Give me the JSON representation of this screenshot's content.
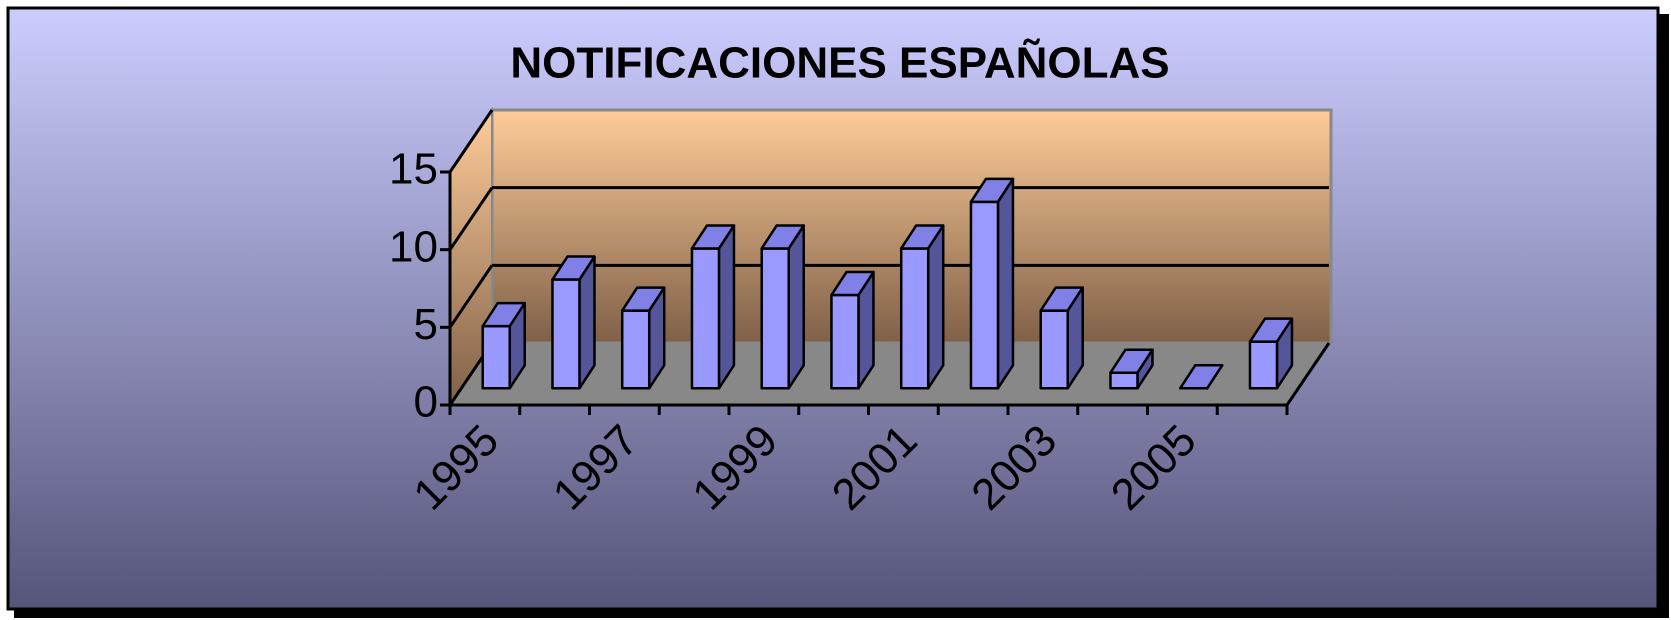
{
  "chart_data": {
    "type": "bar3d",
    "title": "NOTIFICACIONES ESPAÑOLAS",
    "categories": [
      "1995",
      null,
      "1997",
      null,
      "1999",
      null,
      "2001",
      null,
      "2003",
      null,
      "2005",
      null
    ],
    "values": [
      4,
      7,
      5,
      9,
      9,
      6,
      9,
      12,
      5,
      1,
      0,
      3
    ],
    "color": "#9999ff",
    "ylim": [
      0,
      15
    ],
    "yticks": [
      0,
      5,
      10,
      15
    ],
    "grid": true
  }
}
